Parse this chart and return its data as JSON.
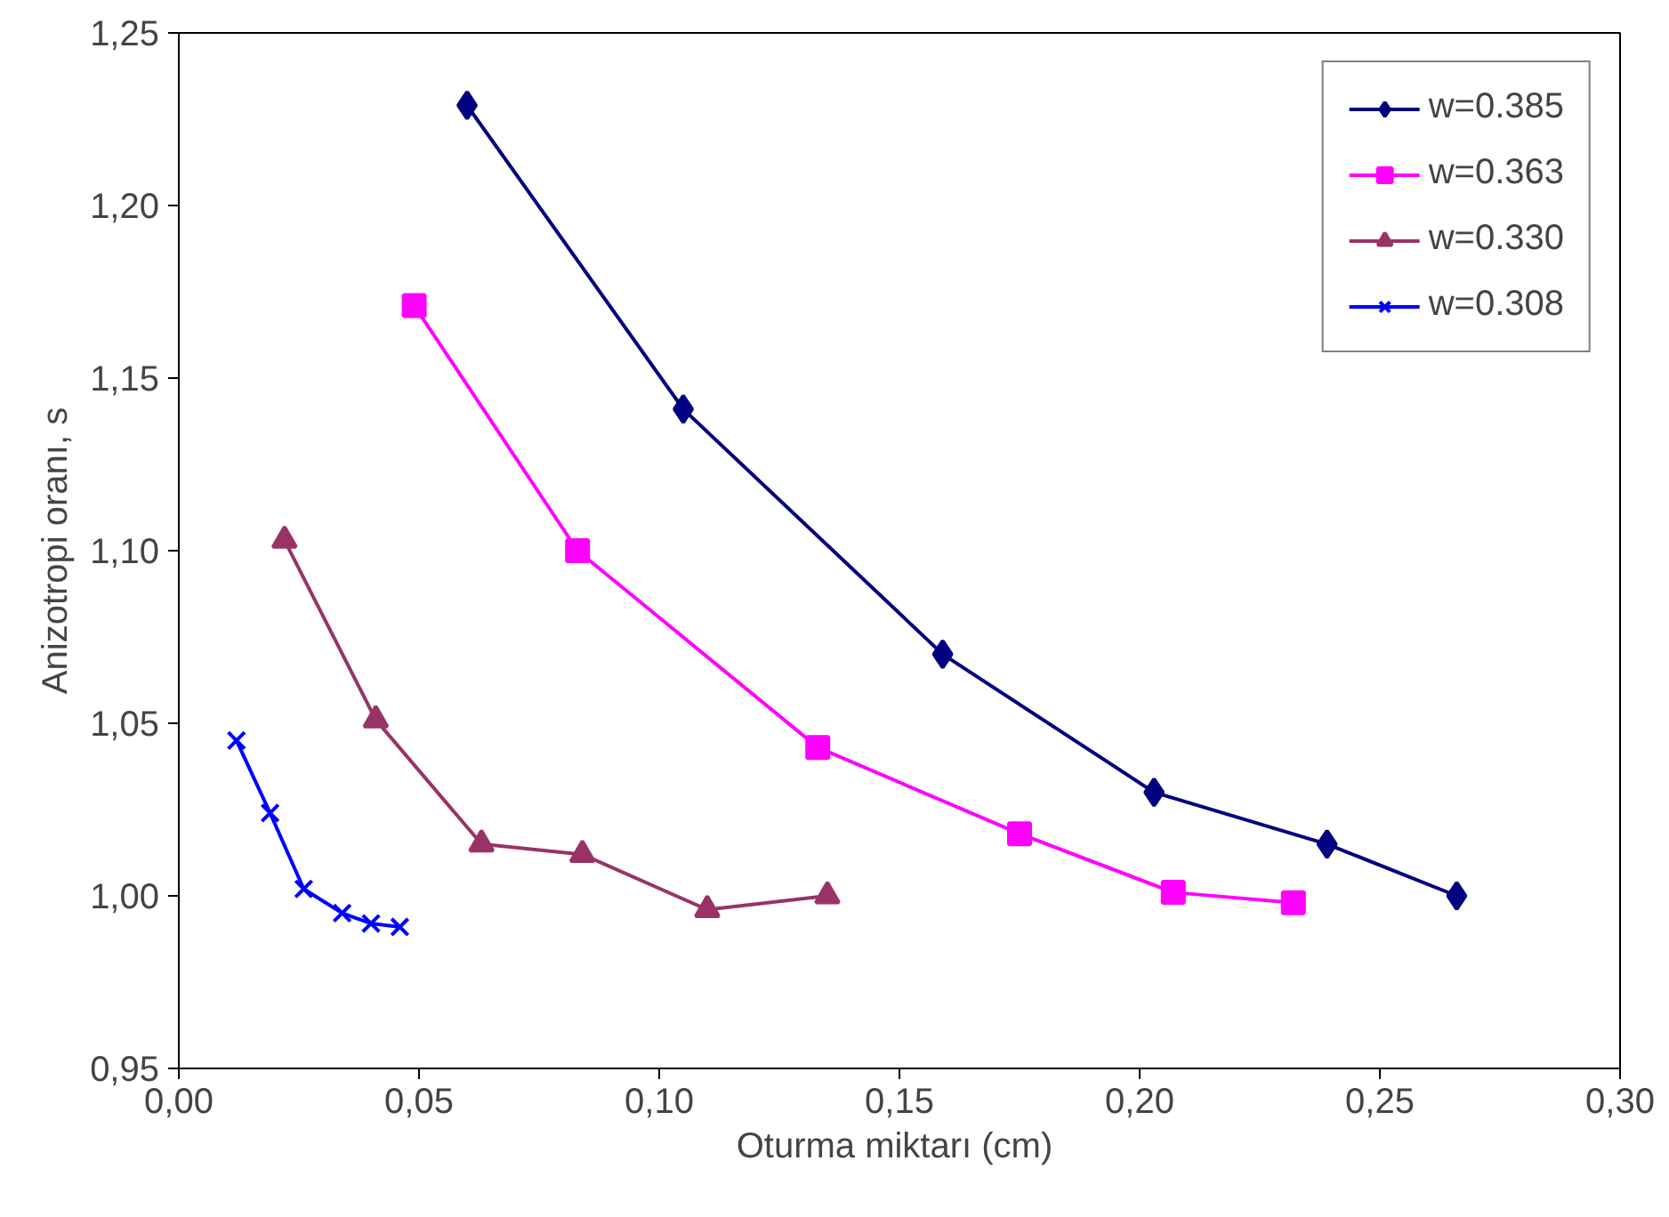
{
  "chart_data": {
    "type": "line",
    "xlabel": "Oturma miktarı  (cm)",
    "ylabel": "Anizotropi oranı, s",
    "xlim": [
      0,
      0.3
    ],
    "ylim": [
      0.95,
      1.25
    ],
    "xticks": [
      {
        "value": 0,
        "label": "0,00"
      },
      {
        "value": 0.05,
        "label": "0,05"
      },
      {
        "value": 0.1,
        "label": "0,10"
      },
      {
        "value": 0.15,
        "label": "0,15"
      },
      {
        "value": 0.2,
        "label": "0,20"
      },
      {
        "value": 0.25,
        "label": "0,25"
      },
      {
        "value": 0.3,
        "label": "0,30"
      }
    ],
    "yticks": [
      {
        "value": 0.95,
        "label": "0,95"
      },
      {
        "value": 1.0,
        "label": "1,00"
      },
      {
        "value": 1.05,
        "label": "1,05"
      },
      {
        "value": 1.1,
        "label": "1,10"
      },
      {
        "value": 1.15,
        "label": "1,15"
      },
      {
        "value": 1.2,
        "label": "1,20"
      },
      {
        "value": 1.25,
        "label": "1,25"
      }
    ],
    "grid": false,
    "legend": "top right",
    "line_style": "solid",
    "series": [
      {
        "name": "w=0.385",
        "color": "#000080",
        "marker": "diamond",
        "x": [
          0.06,
          0.105,
          0.159,
          0.203,
          0.239,
          0.266
        ],
        "values": [
          1.229,
          1.141,
          1.07,
          1.03,
          1.015,
          1.0
        ]
      },
      {
        "name": "w=0.363",
        "color": "#ff00ff",
        "marker": "square",
        "x": [
          0.049,
          0.083,
          0.133,
          0.175,
          0.207,
          0.232
        ],
        "values": [
          1.171,
          1.1,
          1.043,
          1.018,
          1.001,
          0.998
        ]
      },
      {
        "name": "w=0.330",
        "color": "#993366",
        "marker": "triangle",
        "x": [
          0.022,
          0.041,
          0.063,
          0.084,
          0.11,
          0.135
        ],
        "values": [
          1.103,
          1.051,
          1.015,
          1.012,
          0.996,
          1.0
        ]
      },
      {
        "name": "w=0.308",
        "color": "#0000ff",
        "marker": "cross",
        "x": [
          0.012,
          0.019,
          0.026,
          0.034,
          0.04,
          0.046
        ],
        "values": [
          1.045,
          1.024,
          1.002,
          0.995,
          0.992,
          0.991
        ]
      }
    ]
  }
}
